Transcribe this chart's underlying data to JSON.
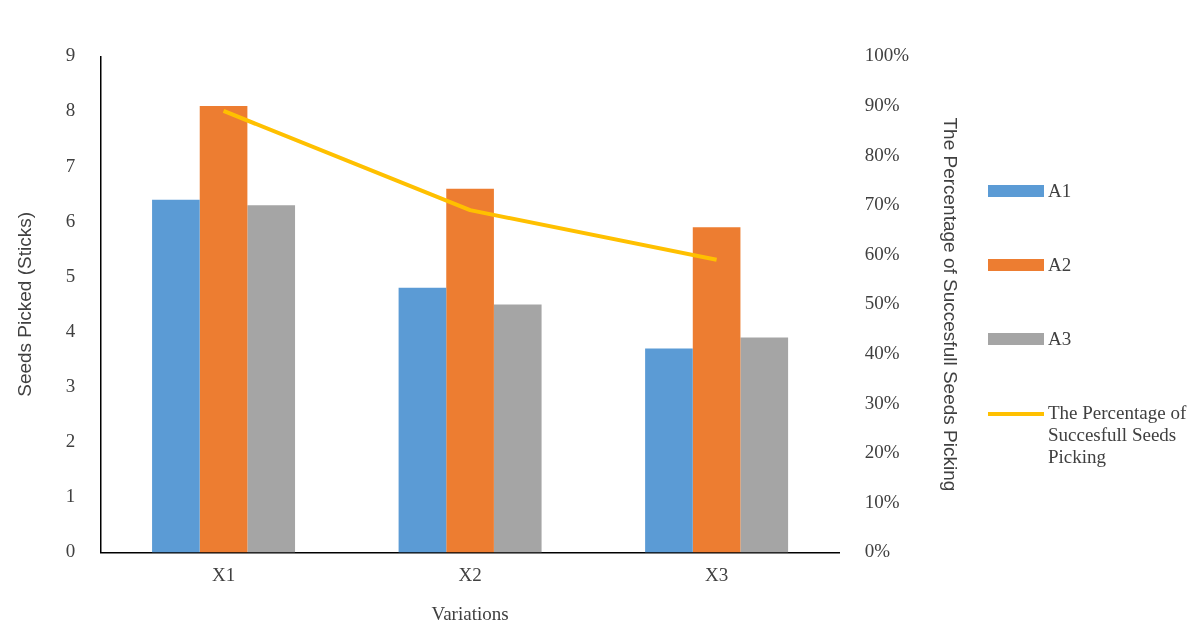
{
  "chart_data": {
    "type": "bar",
    "categories": [
      "X1",
      "X2",
      "X3"
    ],
    "xlabel": "Variations",
    "ylabel": "Seeds Picked (Sticks)",
    "y2label": "The Percentage of Succesfull Seeds Picking",
    "ylim": [
      0,
      9
    ],
    "yticks": [
      0,
      1,
      2,
      3,
      4,
      5,
      6,
      7,
      8,
      9
    ],
    "y2lim": [
      0,
      100
    ],
    "y2ticks": [
      {
        "value": 0,
        "label": "0%"
      },
      {
        "value": 10,
        "label": "10%"
      },
      {
        "value": 20,
        "label": "20%"
      },
      {
        "value": 30,
        "label": "30%"
      },
      {
        "value": 40,
        "label": "40%"
      },
      {
        "value": 50,
        "label": "50%"
      },
      {
        "value": 60,
        "label": "60%"
      },
      {
        "value": 70,
        "label": "70%"
      },
      {
        "value": 80,
        "label": "80%"
      },
      {
        "value": 90,
        "label": "90%"
      },
      {
        "value": 100,
        "label": "100%"
      }
    ],
    "series": [
      {
        "name": "A1",
        "color": "#5b9bd5",
        "values": [
          6.4,
          4.8,
          3.7
        ]
      },
      {
        "name": "A2",
        "color": "#ed7d31",
        "values": [
          8.1,
          6.6,
          5.9
        ]
      },
      {
        "name": "A3",
        "color": "#a5a5a5",
        "values": [
          6.3,
          4.5,
          3.9
        ]
      },
      {
        "name": "The Percentage of Succesfull Seeds Picking",
        "type": "line",
        "axis": "y2",
        "color": "#ffc000",
        "values": [
          89,
          69,
          59
        ]
      }
    ],
    "legend": "right",
    "grid": false,
    "marker": "none"
  }
}
